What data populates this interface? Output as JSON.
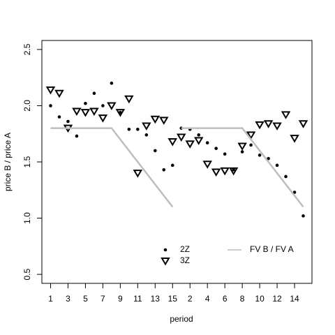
{
  "chart_data": {
    "type": "scatter",
    "xlabel": "period",
    "ylabel": "price B / price A",
    "x": [
      1,
      2,
      3,
      4,
      5,
      6,
      7,
      8,
      9,
      10,
      11,
      12,
      13,
      14,
      15,
      16,
      17,
      18,
      19,
      20,
      21,
      22,
      23,
      24,
      25,
      26,
      27,
      28,
      29,
      30
    ],
    "xlim": [
      0,
      31
    ],
    "xticks": [
      1,
      3,
      5,
      7,
      9,
      11,
      13,
      15,
      {
        "value": 17,
        "label": "2"
      },
      {
        "value": 19,
        "label": "4"
      },
      {
        "value": 21,
        "label": "6"
      },
      {
        "value": 23,
        "label": "8"
      },
      {
        "value": 25,
        "label": "10"
      },
      {
        "value": 27,
        "label": "12"
      },
      {
        "value": 29,
        "label": "14"
      }
    ],
    "ylim": [
      0.42,
      2.58
    ],
    "yticks": [
      {
        "value": 0.5,
        "label": "0.5"
      },
      {
        "value": 1,
        "label": "1.0"
      },
      {
        "value": 1.5,
        "label": "1.5"
      },
      {
        "value": 2,
        "label": "2.0"
      },
      {
        "value": 2.5,
        "label": "2.5"
      }
    ],
    "series": [
      {
        "name": "2Z",
        "marker": "dot",
        "color": "#000000",
        "values": [
          2.0,
          1.9,
          1.86,
          1.73,
          2.02,
          2.11,
          2.0,
          2.2,
          1.94,
          1.79,
          1.79,
          1.74,
          1.6,
          1.43,
          1.47,
          1.8,
          1.79,
          1.74,
          1.67,
          1.62,
          1.57,
          1.43,
          1.59,
          1.65,
          1.56,
          1.53,
          1.47,
          1.37,
          1.23,
          1.02
        ]
      },
      {
        "name": "3Z",
        "marker": "triangle-down",
        "color": "#000000",
        "values": [
          2.14,
          2.11,
          1.8,
          1.95,
          1.94,
          1.95,
          1.89,
          2.0,
          1.94,
          2.06,
          1.4,
          1.82,
          1.88,
          1.87,
          1.68,
          1.72,
          1.66,
          1.69,
          1.48,
          1.41,
          1.42,
          1.42,
          1.64,
          1.74,
          1.83,
          1.84,
          1.82,
          1.92,
          1.71,
          1.84
        ]
      },
      {
        "name": "FV B / FV A",
        "marker": "line",
        "color": "#bebebe",
        "segments": [
          {
            "x": [
              1,
              8,
              15
            ],
            "values": [
              1.8,
              1.8,
              1.1
            ]
          },
          {
            "x": [
              16,
              23,
              30
            ],
            "values": [
              1.8,
              1.8,
              1.1
            ]
          }
        ]
      }
    ]
  }
}
